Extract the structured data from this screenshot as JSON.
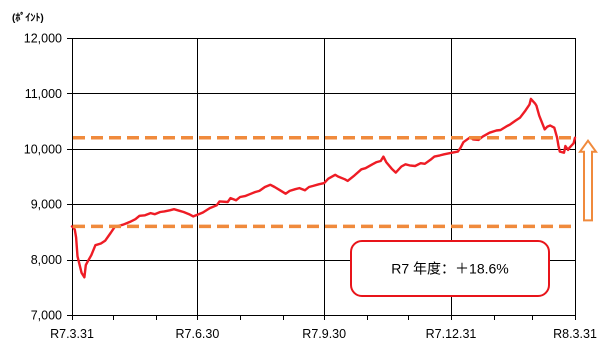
{
  "chart_data": {
    "type": "line",
    "y_unit_label": "(ﾎﾟｲﾝﾄ)",
    "ylim": [
      7000,
      12000
    ],
    "y_ticks": [
      12000,
      11000,
      10000,
      9000,
      8000,
      7000
    ],
    "y_tick_labels": [
      "12,000",
      "11,000",
      "10,000",
      "9,000",
      "8,000",
      "7,000"
    ],
    "xlim": [
      "R7.3.31",
      "R8.3.31"
    ],
    "x_ticks": [
      "R7.3.31",
      "R7.6.30",
      "R7.9.30",
      "R7.12.31",
      "R8.3.31"
    ],
    "grid": true,
    "legend": "none",
    "series": [
      {
        "color": "#ee1c25",
        "points": [
          [
            "R7.3.31",
            8600
          ],
          [
            "R7.4.1",
            8580
          ],
          [
            "R7.4.2",
            8540
          ],
          [
            "R7.4.3",
            8400
          ],
          [
            "R7.4.4",
            8060
          ],
          [
            "R7.4.7",
            7760
          ],
          [
            "R7.4.8",
            7720
          ],
          [
            "R7.4.9",
            7680
          ],
          [
            "R7.4.10",
            7900
          ],
          [
            "R7.4.11",
            7950
          ],
          [
            "R7.4.14",
            8080
          ],
          [
            "R7.4.17",
            8260
          ],
          [
            "R7.4.21",
            8290
          ],
          [
            "R7.4.24",
            8340
          ],
          [
            "R7.4.28",
            8480
          ],
          [
            "R7.5.1",
            8590
          ],
          [
            "R7.5.7",
            8630
          ],
          [
            "R7.5.9",
            8650
          ],
          [
            "R7.5.12",
            8680
          ],
          [
            "R7.5.16",
            8730
          ],
          [
            "R7.5.19",
            8790
          ],
          [
            "R7.5.23",
            8800
          ],
          [
            "R7.5.27",
            8840
          ],
          [
            "R7.5.30",
            8820
          ],
          [
            "R7.6.3",
            8860
          ],
          [
            "R7.6.6",
            8870
          ],
          [
            "R7.6.10",
            8890
          ],
          [
            "R7.6.13",
            8910
          ],
          [
            "R7.6.17",
            8880
          ],
          [
            "R7.6.20",
            8860
          ],
          [
            "R7.6.24",
            8820
          ],
          [
            "R7.6.27",
            8780
          ],
          [
            "R7.7.2",
            8830
          ],
          [
            "R7.7.4",
            8850
          ],
          [
            "R7.7.9",
            8930
          ],
          [
            "R7.7.14",
            8980
          ],
          [
            "R7.7.16",
            9050
          ],
          [
            "R7.7.22",
            9040
          ],
          [
            "R7.7.24",
            9110
          ],
          [
            "R7.7.28",
            9070
          ],
          [
            "R7.7.31",
            9130
          ],
          [
            "R7.8.4",
            9150
          ],
          [
            "R7.8.7",
            9180
          ],
          [
            "R7.8.11",
            9220
          ],
          [
            "R7.8.14",
            9240
          ],
          [
            "R7.8.18",
            9310
          ],
          [
            "R7.8.22",
            9350
          ],
          [
            "R7.8.25",
            9310
          ],
          [
            "R7.8.29",
            9250
          ],
          [
            "R7.9.2",
            9190
          ],
          [
            "R7.9.5",
            9240
          ],
          [
            "R7.9.9",
            9270
          ],
          [
            "R7.9.12",
            9290
          ],
          [
            "R7.9.16",
            9250
          ],
          [
            "R7.9.19",
            9310
          ],
          [
            "R7.9.22",
            9330
          ],
          [
            "R7.9.26",
            9360
          ],
          [
            "R7.9.30",
            9380
          ],
          [
            "R7.10.3",
            9460
          ],
          [
            "R7.10.8",
            9530
          ],
          [
            "R7.10.10",
            9500
          ],
          [
            "R7.10.15",
            9450
          ],
          [
            "R7.10.17",
            9420
          ],
          [
            "R7.10.22",
            9520
          ],
          [
            "R7.10.27",
            9630
          ],
          [
            "R7.10.30",
            9650
          ],
          [
            "R7.11.4",
            9720
          ],
          [
            "R7.11.7",
            9760
          ],
          [
            "R7.11.10",
            9780
          ],
          [
            "R7.11.12",
            9860
          ],
          [
            "R7.11.14",
            9760
          ],
          [
            "R7.11.18",
            9640
          ],
          [
            "R7.11.21",
            9570
          ],
          [
            "R7.11.25",
            9680
          ],
          [
            "R7.11.28",
            9720
          ],
          [
            "R7.12.1",
            9700
          ],
          [
            "R7.12.5",
            9690
          ],
          [
            "R7.12.9",
            9740
          ],
          [
            "R7.12.12",
            9730
          ],
          [
            "R7.12.16",
            9800
          ],
          [
            "R7.12.19",
            9860
          ],
          [
            "R7.12.23",
            9880
          ],
          [
            "R7.12.26",
            9900
          ],
          [
            "R7.12.30",
            9920
          ],
          [
            "R8.1.5",
            9950
          ],
          [
            "R8.1.7",
            10020
          ],
          [
            "R8.1.9",
            10120
          ],
          [
            "R8.1.14",
            10210
          ],
          [
            "R8.1.16",
            10170
          ],
          [
            "R8.1.20",
            10160
          ],
          [
            "R8.1.23",
            10220
          ],
          [
            "R8.1.28",
            10290
          ],
          [
            "R8.2.2",
            10330
          ],
          [
            "R8.2.5",
            10340
          ],
          [
            "R8.2.9",
            10400
          ],
          [
            "R8.2.12",
            10440
          ],
          [
            "R8.2.16",
            10510
          ],
          [
            "R8.2.19",
            10560
          ],
          [
            "R8.2.23",
            10690
          ],
          [
            "R8.2.26",
            10800
          ],
          [
            "R8.2.27",
            10900
          ],
          [
            "R8.3.2",
            10820
          ],
          [
            "R8.3.3",
            10780
          ],
          [
            "R8.3.5",
            10600
          ],
          [
            "R8.3.9",
            10350
          ],
          [
            "R8.3.11",
            10400
          ],
          [
            "R8.3.13",
            10420
          ],
          [
            "R8.3.16",
            10380
          ],
          [
            "R8.3.18",
            10200
          ],
          [
            "R8.3.19",
            10050
          ],
          [
            "R8.3.20",
            9950
          ],
          [
            "R8.3.23",
            9930
          ],
          [
            "R8.3.24",
            10050
          ],
          [
            "R8.3.26",
            9980
          ],
          [
            "R8.3.27",
            10020
          ],
          [
            "R8.3.30",
            10100
          ],
          [
            "R8.3.31",
            10200
          ]
        ]
      }
    ],
    "reference_lines": [
      {
        "value": 10200,
        "color": "#f08a3c",
        "style": "dashed"
      },
      {
        "value": 8600,
        "color": "#f08a3c",
        "style": "dashed"
      }
    ],
    "arrow": {
      "from": 8600,
      "to": 10200,
      "direction": "up",
      "color": "#f08a3c"
    },
    "annotation": {
      "text": "R7 年度：＋18.6%",
      "border_color": "#e8141a"
    }
  }
}
